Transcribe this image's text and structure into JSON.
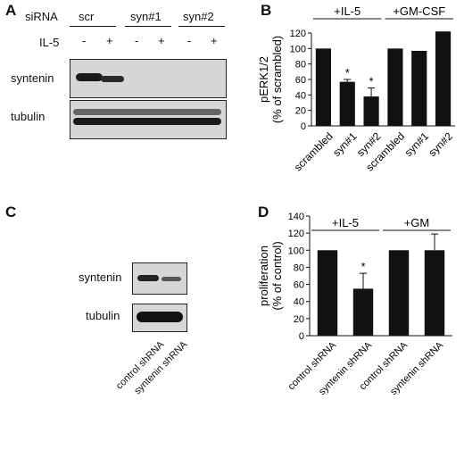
{
  "panelA": {
    "letter": "A",
    "sirna_label": "siRNA",
    "il5_label": "IL-5",
    "groups": [
      "scr",
      "syn#1",
      "syn#2"
    ],
    "lane_signs": [
      "-",
      "+",
      "-",
      "+",
      "-",
      "+"
    ],
    "blot_labels": [
      "syntenin",
      "tubulin"
    ]
  },
  "panelC": {
    "letter": "C",
    "blot_labels": [
      "syntenin",
      "tubulin"
    ],
    "lane_labels": [
      "control shRNA",
      "syntenin shRNA"
    ]
  },
  "chart_data": [
    {
      "panel": "B",
      "type": "bar",
      "categories": [
        "scrambled",
        "syn#1",
        "syn#2",
        "scrambled",
        "syn#1",
        "syn#2"
      ],
      "values": [
        100,
        57,
        38,
        100,
        97,
        122
      ],
      "errors": [
        0,
        3,
        11,
        0,
        0,
        0
      ],
      "significance": [
        "",
        "*",
        "*",
        "",
        "",
        ""
      ],
      "groups": [
        {
          "label": "+IL-5",
          "indices": [
            0,
            1,
            2
          ]
        },
        {
          "label": "+GM-CSF",
          "indices": [
            3,
            4,
            5
          ]
        }
      ],
      "ylabel": [
        "pERK1/2",
        "(% of scrambled)"
      ],
      "ylim": [
        0,
        120
      ],
      "yticks": [
        0,
        20,
        40,
        60,
        80,
        100,
        120
      ],
      "bar_color": "#111111"
    },
    {
      "panel": "D",
      "type": "bar",
      "categories": [
        "control shRNA",
        "syntenin shRNA",
        "control shRNA",
        "syntenin shRNA"
      ],
      "values": [
        100,
        55,
        100,
        100
      ],
      "errors": [
        0,
        18,
        0,
        19
      ],
      "significance": [
        "",
        "*",
        "",
        ""
      ],
      "groups": [
        {
          "label": "+IL-5",
          "indices": [
            0,
            1
          ]
        },
        {
          "label": "+GM",
          "indices": [
            2,
            3
          ]
        }
      ],
      "ylabel": [
        "proliferation",
        "(% of control)"
      ],
      "ylim": [
        0,
        140
      ],
      "yticks": [
        0,
        20,
        40,
        60,
        80,
        100,
        120,
        140
      ],
      "bar_color": "#111111"
    }
  ]
}
